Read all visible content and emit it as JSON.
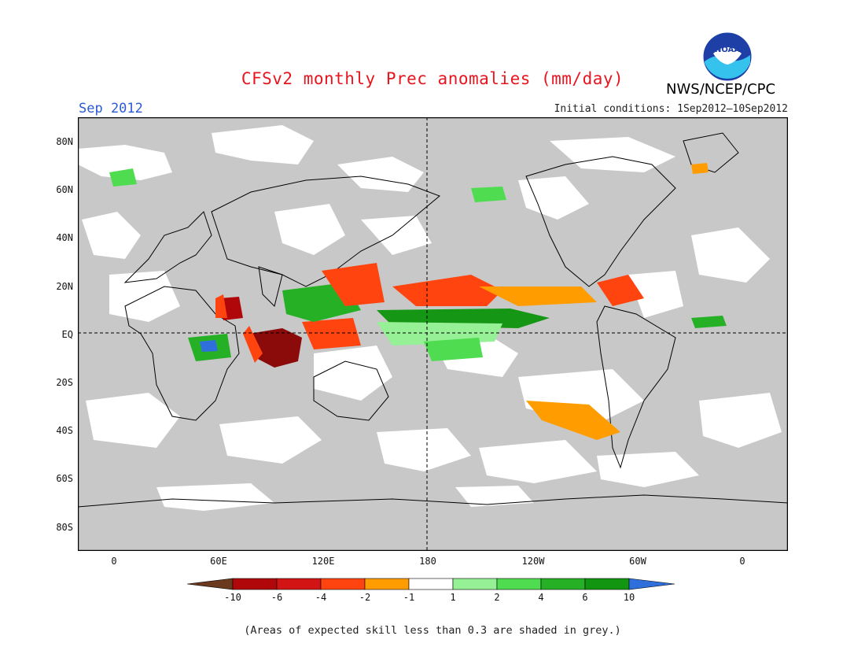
{
  "header": {
    "title": "CFSv2 monthly Prec anomalies (mm/day)",
    "month": "Sep 2012",
    "initial_conditions": "Initial conditions: 1Sep2012—10Sep2012",
    "agency": "NWS/NCEP/CPC",
    "logo_icon": "noaa-logo-icon"
  },
  "map": {
    "lat_labels": [
      "80N",
      "60N",
      "40N",
      "20N",
      "EQ",
      "20S",
      "40S",
      "60S",
      "80S"
    ],
    "lon_labels": [
      "0",
      "60E",
      "120E",
      "180",
      "120W",
      "60W",
      "0"
    ],
    "skill_shading_color": "#c8c8c8",
    "anomaly_regions": [
      {
        "name": "Indian Ocean dry",
        "category": "< -10",
        "color": "#8b0a0a"
      },
      {
        "name": "Western Pacific wet",
        "category": "4 to 6",
        "color": "#21a821"
      },
      {
        "name": "Equatorial Pacific wet band",
        "category": "6 to 10",
        "color": "#159615"
      },
      {
        "name": "Western Indian Ocean wet",
        "category": "> 10",
        "color": "#2a6ee0"
      },
      {
        "name": "Southeast Pacific dry",
        "category": "-2 to -1",
        "color": "#ff9c00"
      },
      {
        "name": "Caribbean dry",
        "category": "-4 to -2",
        "color": "#ff4410"
      }
    ]
  },
  "colorbar": {
    "tick_labels": [
      "-10",
      "-6",
      "-4",
      "-2",
      "-1",
      "1",
      "2",
      "4",
      "6",
      "10"
    ],
    "colors": [
      "#6b3a1e",
      "#b0080a",
      "#d21414",
      "#ff4410",
      "#ff9c00",
      "#ffffff",
      "#96f096",
      "#50dc50",
      "#26b026",
      "#129612",
      "#2f6fdc"
    ]
  },
  "footnote": "(Areas of expected skill less than 0.3 are shaded in grey.)"
}
